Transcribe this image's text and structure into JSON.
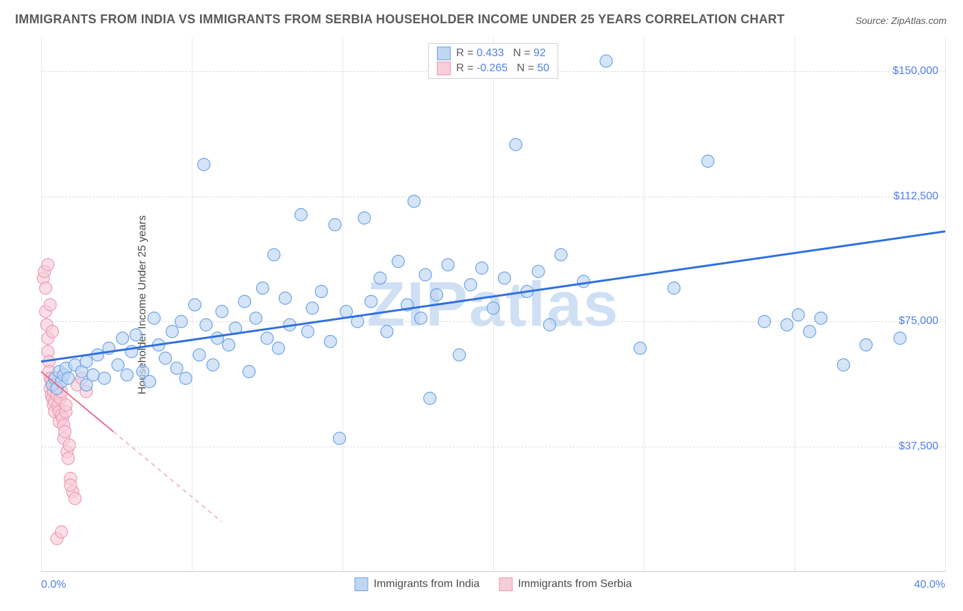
{
  "title": "IMMIGRANTS FROM INDIA VS IMMIGRANTS FROM SERBIA HOUSEHOLDER INCOME UNDER 25 YEARS CORRELATION CHART",
  "source": "Source: ZipAtlas.com",
  "watermark": "ZIPatlas",
  "ylabel": "Householder Income Under 25 years",
  "axes": {
    "xlim": [
      0,
      40
    ],
    "ylim": [
      0,
      160000
    ],
    "xtick_min_label": "0.0%",
    "xtick_max_label": "40.0%",
    "ytick_values": [
      37500,
      75000,
      112500,
      150000
    ],
    "ytick_labels": [
      "$37,500",
      "$75,000",
      "$112,500",
      "$150,000"
    ],
    "xgrid_values": [
      0,
      6.67,
      13.33,
      20,
      26.67,
      33.33,
      40
    ],
    "grid_color": "#dcdcdc",
    "axis_color": "#cfcfcf",
    "tick_label_color": "#4f7fe8"
  },
  "legend_top": {
    "rows": [
      {
        "swatch_fill": "#bfd6f2",
        "swatch_stroke": "#6aa2e6",
        "r_label": "R =",
        "r_value": "0.433",
        "n_label": "N =",
        "n_value": "92"
      },
      {
        "swatch_fill": "#f7cdd8",
        "swatch_stroke": "#ec9ab0",
        "r_label": "R =",
        "r_value": "-0.265",
        "n_label": "N =",
        "n_value": "50"
      }
    ]
  },
  "legend_bottom": {
    "items": [
      {
        "swatch_fill": "#bfd6f2",
        "swatch_stroke": "#6aa2e6",
        "label": "Immigrants from India"
      },
      {
        "swatch_fill": "#f7cdd8",
        "swatch_stroke": "#ec9ab0",
        "label": "Immigrants from Serbia"
      }
    ]
  },
  "series": {
    "india": {
      "color_fill": "#bfd6f2",
      "color_stroke": "#6aa2e6",
      "marker_radius": 9,
      "marker_opacity": 0.65,
      "trend": {
        "x1": 0,
        "y1": 63000,
        "x2": 40,
        "y2": 102000,
        "color": "#2f6fe0",
        "width": 3,
        "dash": "none"
      },
      "points": [
        [
          0.5,
          56000
        ],
        [
          0.6,
          58000
        ],
        [
          0.8,
          60000
        ],
        [
          0.7,
          55000
        ],
        [
          0.9,
          57000
        ],
        [
          1.0,
          59000
        ],
        [
          1.1,
          61000
        ],
        [
          1.2,
          58000
        ],
        [
          1.5,
          62000
        ],
        [
          1.8,
          60000
        ],
        [
          2.0,
          63000
        ],
        [
          2.3,
          59000
        ],
        [
          2.5,
          65000
        ],
        [
          2.0,
          56000
        ],
        [
          2.8,
          58000
        ],
        [
          3.0,
          67000
        ],
        [
          3.4,
          62000
        ],
        [
          3.6,
          70000
        ],
        [
          3.8,
          59000
        ],
        [
          4.0,
          66000
        ],
        [
          4.2,
          71000
        ],
        [
          4.5,
          60000
        ],
        [
          4.8,
          57000
        ],
        [
          5.0,
          76000
        ],
        [
          5.2,
          68000
        ],
        [
          5.5,
          64000
        ],
        [
          5.8,
          72000
        ],
        [
          6.0,
          61000
        ],
        [
          6.2,
          75000
        ],
        [
          6.4,
          58000
        ],
        [
          6.8,
          80000
        ],
        [
          7.0,
          65000
        ],
        [
          7.3,
          74000
        ],
        [
          7.2,
          122000
        ],
        [
          7.6,
          62000
        ],
        [
          7.8,
          70000
        ],
        [
          8.0,
          78000
        ],
        [
          8.3,
          68000
        ],
        [
          8.6,
          73000
        ],
        [
          9.0,
          81000
        ],
        [
          9.2,
          60000
        ],
        [
          9.5,
          76000
        ],
        [
          9.8,
          85000
        ],
        [
          10.0,
          70000
        ],
        [
          10.3,
          95000
        ],
        [
          10.5,
          67000
        ],
        [
          10.8,
          82000
        ],
        [
          11.0,
          74000
        ],
        [
          11.5,
          107000
        ],
        [
          11.8,
          72000
        ],
        [
          12.0,
          79000
        ],
        [
          12.4,
          84000
        ],
        [
          12.8,
          69000
        ],
        [
          13.0,
          104000
        ],
        [
          13.2,
          40000
        ],
        [
          13.5,
          78000
        ],
        [
          14.0,
          75000
        ],
        [
          14.3,
          106000
        ],
        [
          14.6,
          81000
        ],
        [
          15.0,
          88000
        ],
        [
          15.3,
          72000
        ],
        [
          15.8,
          93000
        ],
        [
          16.2,
          80000
        ],
        [
          16.5,
          111000
        ],
        [
          16.8,
          76000
        ],
        [
          17.0,
          89000
        ],
        [
          17.2,
          52000
        ],
        [
          17.5,
          83000
        ],
        [
          18.0,
          92000
        ],
        [
          18.5,
          65000
        ],
        [
          19.0,
          86000
        ],
        [
          19.5,
          91000
        ],
        [
          20.0,
          79000
        ],
        [
          20.5,
          88000
        ],
        [
          21.0,
          128000
        ],
        [
          21.5,
          84000
        ],
        [
          22.0,
          90000
        ],
        [
          22.5,
          74000
        ],
        [
          23.0,
          95000
        ],
        [
          24.0,
          87000
        ],
        [
          25.0,
          153000
        ],
        [
          26.5,
          67000
        ],
        [
          28.0,
          85000
        ],
        [
          29.5,
          123000
        ],
        [
          32.0,
          75000
        ],
        [
          33.5,
          77000
        ],
        [
          34.0,
          72000
        ],
        [
          35.5,
          62000
        ],
        [
          36.5,
          68000
        ],
        [
          38.0,
          70000
        ],
        [
          34.5,
          76000
        ],
        [
          33.0,
          74000
        ]
      ]
    },
    "serbia": {
      "color_fill": "#f7cdd8",
      "color_stroke": "#ec9ab0",
      "marker_radius": 9,
      "marker_opacity": 0.65,
      "trend": {
        "solid": {
          "x1": 0,
          "y1": 60000,
          "x2": 3.2,
          "y2": 42000,
          "color": "#ec6e8e",
          "width": 2
        },
        "dashed": {
          "x1": 3.2,
          "y1": 42000,
          "x2": 8.0,
          "y2": 15000,
          "color": "#f4b8c6",
          "width": 2,
          "dash": "6,6"
        }
      },
      "points": [
        [
          0.1,
          88000
        ],
        [
          0.15,
          90000
        ],
        [
          0.2,
          85000
        ],
        [
          0.2,
          78000
        ],
        [
          0.25,
          74000
        ],
        [
          0.3,
          70000
        ],
        [
          0.3,
          66000
        ],
        [
          0.35,
          63000
        ],
        [
          0.35,
          60000
        ],
        [
          0.4,
          58000
        ],
        [
          0.4,
          55000
        ],
        [
          0.45,
          57000
        ],
        [
          0.45,
          53000
        ],
        [
          0.5,
          52000
        ],
        [
          0.5,
          56000
        ],
        [
          0.55,
          54000
        ],
        [
          0.55,
          50000
        ],
        [
          0.6,
          51000
        ],
        [
          0.6,
          48000
        ],
        [
          0.65,
          56000
        ],
        [
          0.65,
          58000
        ],
        [
          0.7,
          55000
        ],
        [
          0.7,
          53000
        ],
        [
          0.75,
          50000
        ],
        [
          0.8,
          48000
        ],
        [
          0.8,
          45000
        ],
        [
          0.85,
          52000
        ],
        [
          0.9,
          54000
        ],
        [
          0.9,
          47000
        ],
        [
          0.95,
          46000
        ],
        [
          1.0,
          44000
        ],
        [
          1.0,
          40000
        ],
        [
          1.05,
          42000
        ],
        [
          1.1,
          48000
        ],
        [
          1.1,
          50000
        ],
        [
          1.15,
          36000
        ],
        [
          1.2,
          34000
        ],
        [
          1.25,
          38000
        ],
        [
          1.3,
          28000
        ],
        [
          1.4,
          24000
        ],
        [
          1.3,
          26000
        ],
        [
          1.5,
          22000
        ],
        [
          0.7,
          10000
        ],
        [
          0.9,
          12000
        ],
        [
          1.6,
          56000
        ],
        [
          1.8,
          58000
        ],
        [
          2.0,
          54000
        ],
        [
          0.3,
          92000
        ],
        [
          0.4,
          80000
        ],
        [
          0.5,
          72000
        ]
      ]
    }
  }
}
